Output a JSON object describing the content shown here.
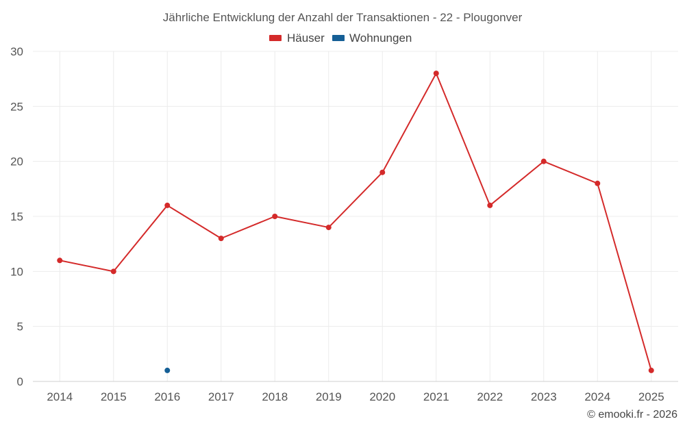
{
  "chart_data": {
    "type": "line",
    "title": "Jährliche Entwicklung der Anzahl der Transaktionen - 22 - Plougonver",
    "categories": [
      "2014",
      "2015",
      "2016",
      "2017",
      "2018",
      "2019",
      "2020",
      "2021",
      "2022",
      "2023",
      "2024",
      "2025"
    ],
    "series": [
      {
        "name": "Häuser",
        "color": "#d42a2a",
        "values": [
          11,
          10,
          16,
          13,
          15,
          14,
          19,
          28,
          16,
          20,
          18,
          1
        ]
      },
      {
        "name": "Wohnungen",
        "color": "#155f96",
        "values": [
          null,
          null,
          1,
          null,
          null,
          null,
          null,
          null,
          null,
          null,
          null,
          null
        ]
      }
    ],
    "ylim": [
      0,
      30
    ],
    "yticks": [
      0,
      5,
      10,
      15,
      20,
      25,
      30
    ],
    "xlabel": "",
    "ylabel": "",
    "grid": true,
    "legend": "top-center"
  },
  "credit": "© emooki.fr - 2026"
}
